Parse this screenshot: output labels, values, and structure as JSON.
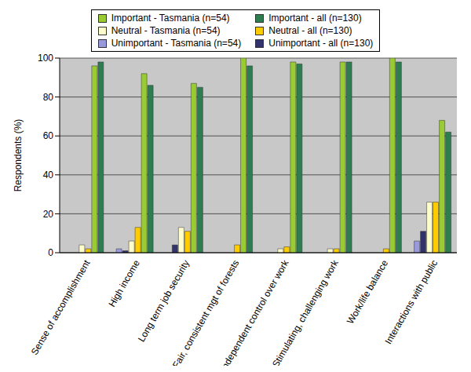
{
  "chart_data": {
    "type": "bar",
    "y_label": "Respondents (%)",
    "categories": [
      "Sense of accomplishment",
      "High income",
      "Long term job security",
      "Fair, consistent mgt of forests",
      "Independent control over work",
      "Stimulating, challenging work",
      "Work/life balance",
      "Interactions with public"
    ],
    "series": [
      {
        "name": "Unimportant - Tasmania (n=54)",
        "color": "#9999dd",
        "values": [
          0,
          2,
          0,
          0,
          0,
          0,
          0,
          6
        ]
      },
      {
        "name": "Unimportant - all (n=130)",
        "color": "#33336b",
        "values": [
          0,
          1,
          4,
          0,
          0,
          0,
          0,
          11
        ]
      },
      {
        "name": "Neutral - Tasmania (n=54)",
        "color": "#ffffcc",
        "values": [
          4,
          6,
          13,
          0,
          2,
          2,
          0,
          26
        ]
      },
      {
        "name": "Neutral - all (n=130)",
        "color": "#ffcc00",
        "values": [
          2,
          13,
          11,
          4,
          3,
          2,
          2,
          26
        ]
      },
      {
        "name": "Important - Tasmania (n=54)",
        "color": "#99cc33",
        "values": [
          96,
          92,
          87,
          100,
          98,
          98,
          100,
          68
        ]
      },
      {
        "name": "Important - all (n=130)",
        "color": "#2e7d50",
        "values": [
          98,
          86,
          85,
          96,
          97,
          98,
          98,
          62
        ]
      }
    ],
    "ylim": [
      0,
      100
    ],
    "yticks": [
      0,
      20,
      40,
      60,
      80,
      100
    ],
    "grid": true
  }
}
